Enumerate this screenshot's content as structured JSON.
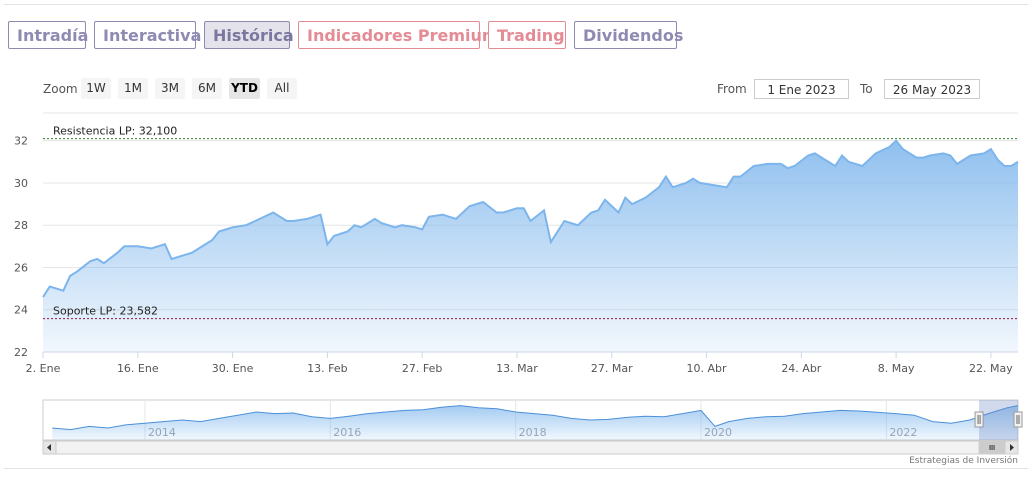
{
  "tabs": [
    {
      "label": "Intradía",
      "style": "normal"
    },
    {
      "label": "Interactiva",
      "style": "normal"
    },
    {
      "label": "Histórica",
      "style": "active"
    },
    {
      "label": "Indicadores Premium",
      "style": "premium"
    },
    {
      "label": "Trading",
      "style": "premium"
    },
    {
      "label": "Dividendos",
      "style": "normal"
    }
  ],
  "zoom": {
    "label": "Zoom",
    "buttons": [
      "1W",
      "1M",
      "3M",
      "6M",
      "YTD",
      "All"
    ],
    "active": "YTD"
  },
  "range": {
    "from_label": "From",
    "from_value": "1 Ene 2023",
    "to_label": "To",
    "to_value": "26 May 2023"
  },
  "chart_data": {
    "type": "area",
    "title": "",
    "xlabel": "",
    "ylabel": "",
    "ylim": [
      22,
      32.6
    ],
    "y_ticks": [
      "22",
      "24",
      "26",
      "28",
      "30",
      "32"
    ],
    "x_tick_labels": [
      "2. Ene",
      "16. Ene",
      "30. Ene",
      "13. Feb",
      "27. Feb",
      "13. Mar",
      "27. Mar",
      "10. Abr",
      "24. Abr",
      "8. May",
      "22. May"
    ],
    "x_tick_day_index": [
      1,
      15,
      29,
      43,
      57,
      71,
      85,
      99,
      113,
      127,
      141
    ],
    "x_range_days": [
      1,
      145
    ],
    "series": [
      {
        "x_day_index": [
          1,
          2,
          4,
          5,
          6,
          8,
          9,
          10,
          12,
          13,
          15,
          17,
          19,
          20,
          22,
          23,
          24,
          26,
          27,
          29,
          31,
          33,
          35,
          37,
          38,
          40,
          42,
          43,
          44,
          46,
          47,
          48,
          50,
          51,
          53,
          54,
          56,
          57,
          58,
          60,
          61,
          62,
          64,
          66,
          68,
          69,
          71,
          72,
          73,
          75,
          76,
          78,
          80,
          82,
          83,
          84,
          86,
          87,
          88,
          90,
          92,
          93,
          94,
          96,
          97,
          98,
          100,
          102,
          103,
          104,
          106,
          108,
          110,
          111,
          112,
          114,
          115,
          116,
          118,
          119,
          120,
          122,
          123,
          124,
          126,
          127,
          128,
          130,
          131,
          132,
          134,
          135,
          136,
          138,
          140,
          141,
          142,
          143,
          144,
          145
        ],
        "values": [
          24.6,
          25.1,
          24.9,
          25.6,
          25.8,
          26.3,
          26.4,
          26.2,
          26.7,
          27.0,
          27.0,
          26.9,
          27.1,
          26.4,
          26.6,
          26.7,
          26.9,
          27.3,
          27.7,
          27.9,
          28.0,
          28.3,
          28.6,
          28.2,
          28.2,
          28.3,
          28.5,
          27.1,
          27.5,
          27.7,
          28.0,
          27.9,
          28.3,
          28.1,
          27.9,
          28.0,
          27.9,
          27.8,
          28.4,
          28.5,
          28.4,
          28.3,
          28.9,
          29.1,
          28.6,
          28.6,
          28.8,
          28.8,
          28.2,
          28.7,
          27.2,
          28.2,
          28.0,
          28.6,
          28.7,
          29.2,
          28.6,
          29.3,
          29.0,
          29.3,
          29.8,
          30.3,
          29.8,
          30.0,
          30.2,
          30.0,
          29.9,
          29.8,
          30.3,
          30.3,
          30.8,
          30.9,
          30.9,
          30.7,
          30.8,
          31.3,
          31.4,
          31.2,
          30.8,
          31.3,
          31.0,
          30.8,
          31.1,
          31.4,
          31.7,
          32.0,
          31.6,
          31.2,
          31.2,
          31.3,
          31.4,
          31.3,
          30.9,
          31.3,
          31.4,
          31.6,
          31.1,
          30.8,
          30.8,
          31.0
        ]
      }
    ],
    "annotations": [
      {
        "label": "Resistencia LP: 32,100",
        "value": 32.1,
        "color": "#2e7d32"
      },
      {
        "label": "Soporte LP: 23,582",
        "value": 23.582,
        "color": "#8b1a3a"
      }
    ],
    "navigator": {
      "year_labels": [
        "2014",
        "2016",
        "2018",
        "2020",
        "2022"
      ],
      "year_positions": [
        2014,
        2016,
        2018,
        2020,
        2022
      ],
      "x_range_years": [
        2012.9,
        2023.42
      ],
      "series_years": [
        2013.0,
        2013.2,
        2013.4,
        2013.6,
        2013.8,
        2014.0,
        2014.2,
        2014.4,
        2014.6,
        2014.8,
        2015.0,
        2015.2,
        2015.4,
        2015.6,
        2015.8,
        2016.0,
        2016.2,
        2016.4,
        2016.6,
        2016.8,
        2017.0,
        2017.2,
        2017.4,
        2017.6,
        2017.8,
        2018.0,
        2018.2,
        2018.4,
        2018.6,
        2018.8,
        2019.0,
        2019.2,
        2019.4,
        2019.6,
        2019.8,
        2020.0,
        2020.15,
        2020.3,
        2020.5,
        2020.7,
        2020.9,
        2021.1,
        2021.3,
        2021.5,
        2021.7,
        2021.9,
        2022.1,
        2022.3,
        2022.5,
        2022.7,
        2022.9,
        2023.1,
        2023.3,
        2023.42
      ],
      "series_values": [
        0.25,
        0.2,
        0.3,
        0.25,
        0.35,
        0.4,
        0.45,
        0.5,
        0.45,
        0.55,
        0.65,
        0.75,
        0.7,
        0.72,
        0.6,
        0.55,
        0.62,
        0.7,
        0.75,
        0.8,
        0.82,
        0.9,
        0.95,
        0.88,
        0.85,
        0.75,
        0.7,
        0.65,
        0.55,
        0.5,
        0.52,
        0.58,
        0.62,
        0.6,
        0.7,
        0.8,
        0.3,
        0.45,
        0.55,
        0.6,
        0.62,
        0.7,
        0.75,
        0.8,
        0.78,
        0.74,
        0.7,
        0.65,
        0.45,
        0.4,
        0.5,
        0.7,
        0.88,
        0.95
      ],
      "selection_years": [
        2023.0,
        2023.42
      ]
    }
  },
  "credit": "Estrategias de Inversión",
  "colors": {
    "line": "#7cb5ec",
    "area_top": "#7cb5ec",
    "area_bottom": "#ffffff"
  }
}
